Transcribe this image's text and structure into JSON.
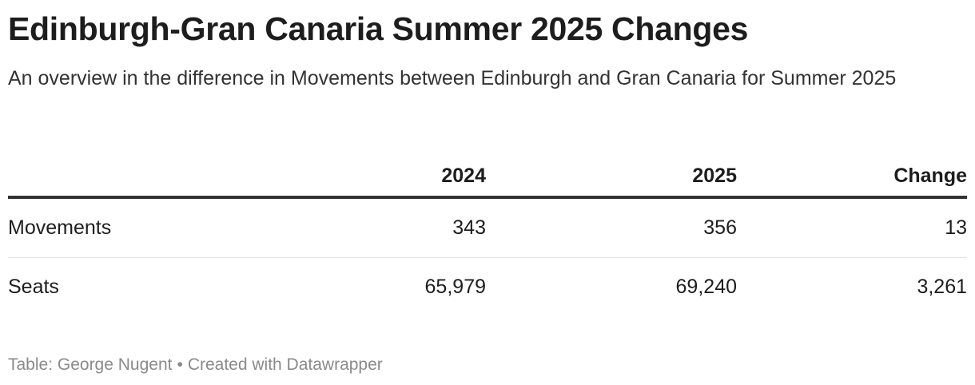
{
  "title": "Edinburgh-Gran Canaria Summer 2025 Changes",
  "subtitle": "An overview in the difference in Movements between Edinburgh and Gran Canaria for Summer 2025",
  "chart_data": {
    "type": "table",
    "columns": [
      "",
      "2024",
      "2025",
      "Change"
    ],
    "rows": [
      {
        "label": "Movements",
        "values": [
          "343",
          "356",
          "13"
        ]
      },
      {
        "label": "Seats",
        "values": [
          "65,979",
          "69,240",
          "3,261"
        ]
      }
    ]
  },
  "footer": {
    "source": "Table: George Nugent",
    "separator": "•",
    "credit": "Created with Datawrapper"
  }
}
